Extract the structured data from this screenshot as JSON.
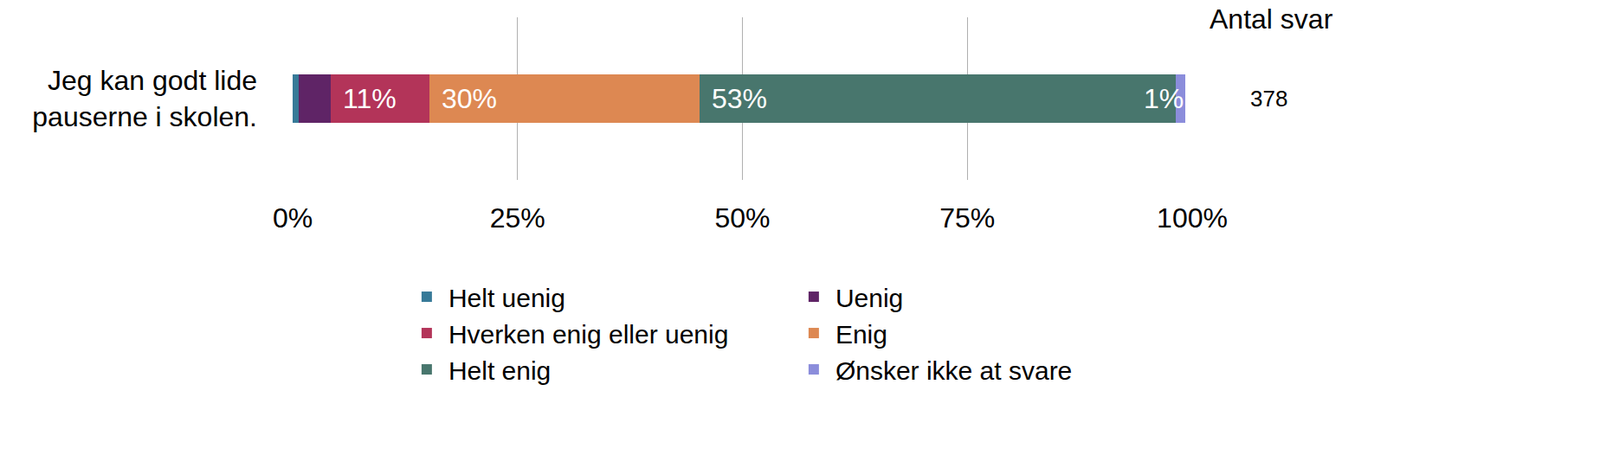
{
  "chart_data": {
    "type": "bar",
    "orientation": "horizontal",
    "stacked": true,
    "categories": [
      "Jeg kan godt lide pauserne i skolen."
    ],
    "series": [
      {
        "name": "Helt uenig",
        "color": "#377a98",
        "values": [
          0.7
        ],
        "value_labels": [
          null
        ]
      },
      {
        "name": "Uenig",
        "color": "#5f2466",
        "values": [
          3.5
        ],
        "value_labels": [
          null
        ]
      },
      {
        "name": "Hverken enig eller uenig",
        "color": "#b33459",
        "values": [
          11
        ],
        "value_labels": [
          "11%"
        ]
      },
      {
        "name": "Enig",
        "color": "#dd8852",
        "values": [
          30
        ],
        "value_labels": [
          "30%"
        ]
      },
      {
        "name": "Helt enig",
        "color": "#48766d",
        "values": [
          53
        ],
        "value_labels": [
          "53%"
        ]
      },
      {
        "name": "Ønsker ikke at svare",
        "color": "#8b8ddb",
        "values": [
          1
        ],
        "value_labels": [
          "1%"
        ]
      }
    ],
    "xlim": [
      0,
      100
    ],
    "xticks": [
      {
        "value": 0,
        "label": "0%"
      },
      {
        "value": 25,
        "label": "25%"
      },
      {
        "value": 50,
        "label": "50%"
      },
      {
        "value": 75,
        "label": "75%"
      },
      {
        "value": 100,
        "label": "100%"
      }
    ],
    "grid": true,
    "data_labels": true,
    "legend": "bottom",
    "count_title": "Antal svar",
    "counts": [
      378
    ]
  }
}
